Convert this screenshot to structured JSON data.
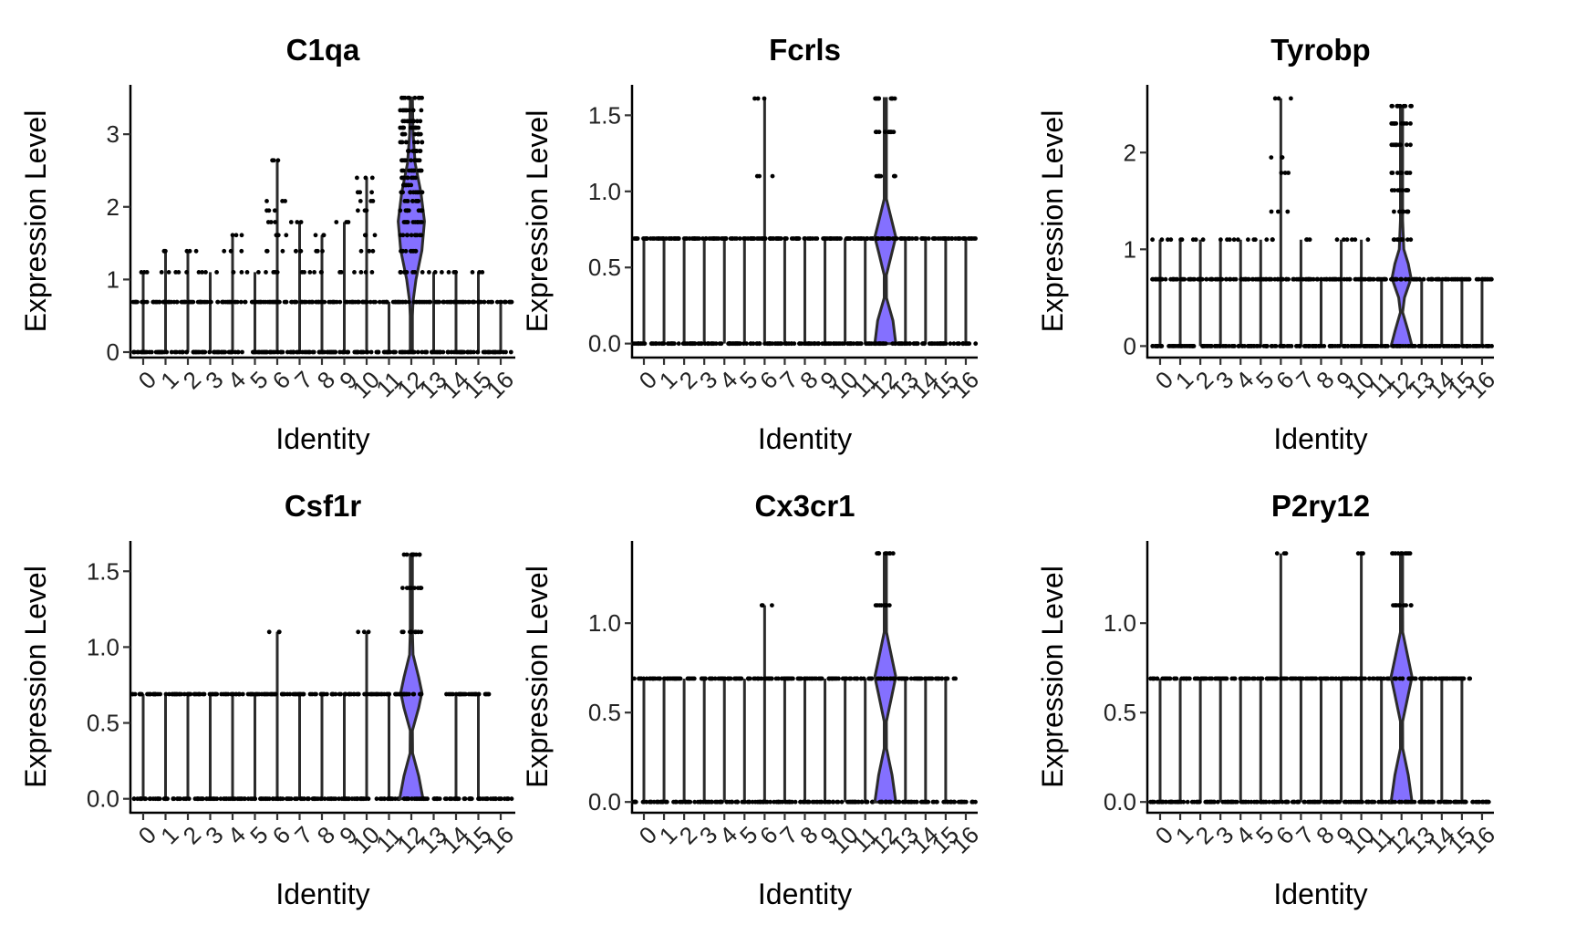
{
  "figure": {
    "violin_fill": "#8470FF",
    "dot_color": "#000000",
    "line_color": "#2b2b2b"
  },
  "chart_data": [
    {
      "type": "violin",
      "title": "C1qa",
      "xlabel": "Identity",
      "ylabel": "Expression Level",
      "categories": [
        "0",
        "1",
        "2",
        "3",
        "4",
        "5",
        "6",
        "7",
        "8",
        "9",
        "10",
        "11",
        "12",
        "13",
        "14",
        "15",
        "16"
      ],
      "ylim": [
        -0.05,
        3.68
      ],
      "yticks": [
        0,
        1,
        2,
        3
      ],
      "ytick_labels": [
        "0",
        "1",
        "2",
        "3"
      ],
      "max_values": [
        1.1,
        1.39,
        1.39,
        1.1,
        1.61,
        1.1,
        2.64,
        1.79,
        1.61,
        1.79,
        2.4,
        0.69,
        3.5,
        1.1,
        1.1,
        1.1,
        0.69
      ],
      "dot_levels": [
        [
          0,
          0.69,
          1.1
        ],
        [
          0,
          0.69,
          1.1,
          1.39
        ],
        [
          0,
          0.69,
          1.1,
          1.39
        ],
        [
          0,
          0.69,
          1.1
        ],
        [
          0,
          0.69,
          1.1,
          1.39,
          1.61
        ],
        [
          0,
          0.69,
          1.1
        ],
        [
          0,
          0.69,
          1.1,
          1.39,
          1.61,
          1.79,
          1.95,
          2.08,
          2.64
        ],
        [
          0,
          0.69,
          1.1,
          1.39,
          1.79
        ],
        [
          0,
          0.69,
          1.1,
          1.39,
          1.61
        ],
        [
          0,
          0.69,
          1.1,
          1.79
        ],
        [
          0,
          0.69,
          1.1,
          1.39,
          1.61,
          1.95,
          2.08,
          2.2,
          2.4
        ],
        [
          0,
          0.69
        ],
        [
          0,
          0.69,
          1.1,
          1.39,
          1.61,
          1.79,
          1.95,
          2.08,
          2.2,
          2.3,
          2.4,
          2.5,
          2.64,
          2.77,
          2.89,
          3.0,
          3.09,
          3.18,
          3.33,
          3.5
        ],
        [
          0,
          0.69,
          1.1
        ],
        [
          0,
          0.69,
          1.1
        ],
        [
          0,
          0.69,
          1.1
        ],
        [
          0,
          0.69
        ]
      ],
      "violin_cluster": "12",
      "violin_density": [
        [
          0,
          0.0
        ],
        [
          0.5,
          0.02
        ],
        [
          0.7,
          0.08
        ],
        [
          1.0,
          0.22
        ],
        [
          1.4,
          0.5
        ],
        [
          1.8,
          0.62
        ],
        [
          2.2,
          0.45
        ],
        [
          2.6,
          0.18
        ],
        [
          3.0,
          0.08
        ],
        [
          3.5,
          0.0
        ]
      ]
    },
    {
      "type": "violin",
      "title": "Fcrls",
      "xlabel": "Identity",
      "ylabel": "Expression Level",
      "categories": [
        "0",
        "1",
        "2",
        "3",
        "4",
        "5",
        "6",
        "7",
        "8",
        "9",
        "10",
        "11",
        "12",
        "13",
        "14",
        "15",
        "16"
      ],
      "ylim": [
        -0.08,
        1.7
      ],
      "yticks": [
        0,
        0.5,
        1.0,
        1.5
      ],
      "ytick_labels": [
        "0.0",
        "0.5",
        "1.0",
        "1.5"
      ],
      "max_values": [
        0.69,
        0.69,
        0.69,
        0.69,
        0.69,
        0.69,
        1.61,
        0.69,
        0.69,
        0.69,
        0.69,
        0.69,
        1.61,
        0.69,
        0.69,
        0.69,
        0.69
      ],
      "dot_levels": [
        [
          0,
          0.69
        ],
        [
          0,
          0.69
        ],
        [
          0,
          0.69
        ],
        [
          0,
          0.69
        ],
        [
          0,
          0.69
        ],
        [
          0,
          0.69
        ],
        [
          0,
          0.69,
          1.1,
          1.61
        ],
        [
          0,
          0.69
        ],
        [
          0,
          0.69
        ],
        [
          0,
          0.69
        ],
        [
          0,
          0.69
        ],
        [
          0,
          0.69
        ],
        [
          0,
          0.69,
          1.1,
          1.39,
          1.61
        ],
        [
          0,
          0.69
        ],
        [
          0,
          0.69
        ],
        [
          0,
          0.69
        ],
        [
          0,
          0.69
        ]
      ],
      "violin_cluster": "12",
      "violin_density": [
        [
          0,
          0.55
        ],
        [
          0.15,
          0.4
        ],
        [
          0.3,
          0.06
        ],
        [
          0.45,
          0.05
        ],
        [
          0.6,
          0.35
        ],
        [
          0.7,
          0.55
        ],
        [
          0.8,
          0.35
        ],
        [
          0.95,
          0.05
        ],
        [
          1.1,
          0.03
        ],
        [
          1.39,
          0.03
        ],
        [
          1.61,
          0.0
        ]
      ]
    },
    {
      "type": "violin",
      "title": "Tyrobp",
      "xlabel": "Identity",
      "ylabel": "Expression Level",
      "categories": [
        "0",
        "1",
        "2",
        "3",
        "4",
        "5",
        "6",
        "7",
        "8",
        "9",
        "10",
        "11",
        "12",
        "13",
        "14",
        "15",
        "16"
      ],
      "ylim": [
        -0.1,
        2.7
      ],
      "yticks": [
        0,
        1,
        2
      ],
      "ytick_labels": [
        "0",
        "1",
        "2"
      ],
      "max_values": [
        1.1,
        1.1,
        1.1,
        1.1,
        1.1,
        1.1,
        2.56,
        1.1,
        0.69,
        1.1,
        1.1,
        0.69,
        2.48,
        0.69,
        0.69,
        0.69,
        0.69
      ],
      "dot_levels": [
        [
          0,
          0.69,
          1.1
        ],
        [
          0,
          0.69,
          1.1
        ],
        [
          0,
          0.69,
          1.1
        ],
        [
          0,
          0.69,
          1.1
        ],
        [
          0,
          0.69,
          1.1
        ],
        [
          0,
          0.69,
          1.1
        ],
        [
          0,
          0.69,
          1.1,
          1.39,
          1.79,
          1.95,
          2.56
        ],
        [
          0,
          0.69,
          1.1
        ],
        [
          0,
          0.69
        ],
        [
          0,
          0.69,
          1.1
        ],
        [
          0,
          0.69,
          1.1
        ],
        [
          0,
          0.69
        ],
        [
          0,
          0.69,
          1.1,
          1.39,
          1.61,
          1.79,
          2.08,
          2.3,
          2.48
        ],
        [
          0,
          0.69
        ],
        [
          0,
          0.69
        ],
        [
          0,
          0.69
        ],
        [
          0,
          0.69
        ]
      ],
      "violin_cluster": "12",
      "violin_density": [
        [
          0,
          0.55
        ],
        [
          0.15,
          0.35
        ],
        [
          0.35,
          0.05
        ],
        [
          0.5,
          0.15
        ],
        [
          0.7,
          0.5
        ],
        [
          0.85,
          0.35
        ],
        [
          1.0,
          0.12
        ],
        [
          1.3,
          0.04
        ],
        [
          1.8,
          0.02
        ],
        [
          2.48,
          0.0
        ]
      ]
    },
    {
      "type": "violin",
      "title": "Csf1r",
      "xlabel": "Identity",
      "ylabel": "Expression Level",
      "categories": [
        "0",
        "1",
        "2",
        "3",
        "4",
        "5",
        "6",
        "7",
        "8",
        "9",
        "10",
        "11",
        "12",
        "13",
        "14",
        "15",
        "16"
      ],
      "ylim": [
        -0.08,
        1.7
      ],
      "yticks": [
        0,
        0.5,
        1.0,
        1.5
      ],
      "ytick_labels": [
        "0.0",
        "0.5",
        "1.0",
        "1.5"
      ],
      "max_values": [
        0.69,
        0.69,
        0.69,
        0.69,
        0.69,
        0.69,
        1.1,
        0.69,
        0.69,
        0.69,
        1.1,
        0.69,
        1.61,
        0,
        0.69,
        0.69,
        0
      ],
      "dot_levels": [
        [
          0,
          0.69
        ],
        [
          0,
          0.69
        ],
        [
          0,
          0.69
        ],
        [
          0,
          0.69
        ],
        [
          0,
          0.69
        ],
        [
          0,
          0.69
        ],
        [
          0,
          0.69,
          1.1
        ],
        [
          0,
          0.69
        ],
        [
          0,
          0.69
        ],
        [
          0,
          0.69
        ],
        [
          0,
          0.69,
          1.1
        ],
        [
          0,
          0.69
        ],
        [
          0,
          0.69,
          1.1,
          1.39,
          1.61
        ],
        [
          0
        ],
        [
          0,
          0.69
        ],
        [
          0,
          0.69
        ],
        [
          0
        ]
      ],
      "violin_cluster": "12",
      "violin_density": [
        [
          0,
          0.55
        ],
        [
          0.15,
          0.35
        ],
        [
          0.3,
          0.06
        ],
        [
          0.45,
          0.05
        ],
        [
          0.6,
          0.35
        ],
        [
          0.7,
          0.5
        ],
        [
          0.8,
          0.35
        ],
        [
          0.95,
          0.08
        ],
        [
          1.1,
          0.03
        ],
        [
          1.39,
          0.02
        ],
        [
          1.61,
          0.0
        ]
      ]
    },
    {
      "type": "violin",
      "title": "Cx3cr1",
      "xlabel": "Identity",
      "ylabel": "Expression Level",
      "categories": [
        "0",
        "1",
        "2",
        "3",
        "4",
        "5",
        "6",
        "7",
        "8",
        "9",
        "10",
        "11",
        "12",
        "13",
        "14",
        "15",
        "16"
      ],
      "ylim": [
        -0.05,
        1.46
      ],
      "yticks": [
        0,
        0.5,
        1.0
      ],
      "ytick_labels": [
        "0.0",
        "0.5",
        "1.0"
      ],
      "max_values": [
        0.69,
        0.69,
        0.69,
        0.69,
        0.69,
        0.69,
        1.1,
        0.69,
        0.69,
        0.69,
        0.69,
        0.69,
        1.39,
        0.69,
        0.69,
        0.69,
        0
      ],
      "dot_levels": [
        [
          0,
          0.69
        ],
        [
          0,
          0.69
        ],
        [
          0,
          0.69
        ],
        [
          0,
          0.69
        ],
        [
          0,
          0.69
        ],
        [
          0,
          0.69
        ],
        [
          0,
          0.69,
          1.1
        ],
        [
          0,
          0.69
        ],
        [
          0,
          0.69
        ],
        [
          0,
          0.69
        ],
        [
          0,
          0.69
        ],
        [
          0,
          0.69
        ],
        [
          0,
          0.69,
          1.1,
          1.39
        ],
        [
          0,
          0.69
        ],
        [
          0,
          0.69
        ],
        [
          0,
          0.69
        ],
        [
          0
        ]
      ],
      "violin_cluster": "12",
      "violin_density": [
        [
          0,
          0.55
        ],
        [
          0.15,
          0.35
        ],
        [
          0.3,
          0.06
        ],
        [
          0.45,
          0.05
        ],
        [
          0.6,
          0.35
        ],
        [
          0.7,
          0.55
        ],
        [
          0.8,
          0.35
        ],
        [
          0.95,
          0.06
        ],
        [
          1.1,
          0.03
        ],
        [
          1.39,
          0.0
        ]
      ]
    },
    {
      "type": "violin",
      "title": "P2ry12",
      "xlabel": "Identity",
      "ylabel": "Expression Level",
      "categories": [
        "0",
        "1",
        "2",
        "3",
        "4",
        "5",
        "6",
        "7",
        "8",
        "9",
        "10",
        "11",
        "12",
        "13",
        "14",
        "15",
        "16"
      ],
      "ylim": [
        -0.05,
        1.46
      ],
      "yticks": [
        0,
        0.5,
        1.0
      ],
      "ytick_labels": [
        "0.0",
        "0.5",
        "1.0"
      ],
      "max_values": [
        0.69,
        0.69,
        0.69,
        0.69,
        0.69,
        0.69,
        1.39,
        0.69,
        0.69,
        0.69,
        1.39,
        0.69,
        1.39,
        0.69,
        0.69,
        0.69,
        0
      ],
      "dot_levels": [
        [
          0,
          0.69
        ],
        [
          0,
          0.69
        ],
        [
          0,
          0.69
        ],
        [
          0,
          0.69
        ],
        [
          0,
          0.69
        ],
        [
          0,
          0.69
        ],
        [
          0,
          0.69,
          1.39
        ],
        [
          0,
          0.69
        ],
        [
          0,
          0.69
        ],
        [
          0,
          0.69
        ],
        [
          0,
          0.69,
          1.39
        ],
        [
          0,
          0.69
        ],
        [
          0,
          0.69,
          1.1,
          1.39
        ],
        [
          0,
          0.69
        ],
        [
          0,
          0.69
        ],
        [
          0,
          0.69
        ],
        [
          0
        ]
      ],
      "violin_cluster": "12",
      "violin_density": [
        [
          0,
          0.55
        ],
        [
          0.15,
          0.35
        ],
        [
          0.3,
          0.06
        ],
        [
          0.45,
          0.05
        ],
        [
          0.6,
          0.35
        ],
        [
          0.7,
          0.55
        ],
        [
          0.8,
          0.35
        ],
        [
          0.95,
          0.06
        ],
        [
          1.1,
          0.03
        ],
        [
          1.39,
          0.0
        ]
      ]
    }
  ]
}
